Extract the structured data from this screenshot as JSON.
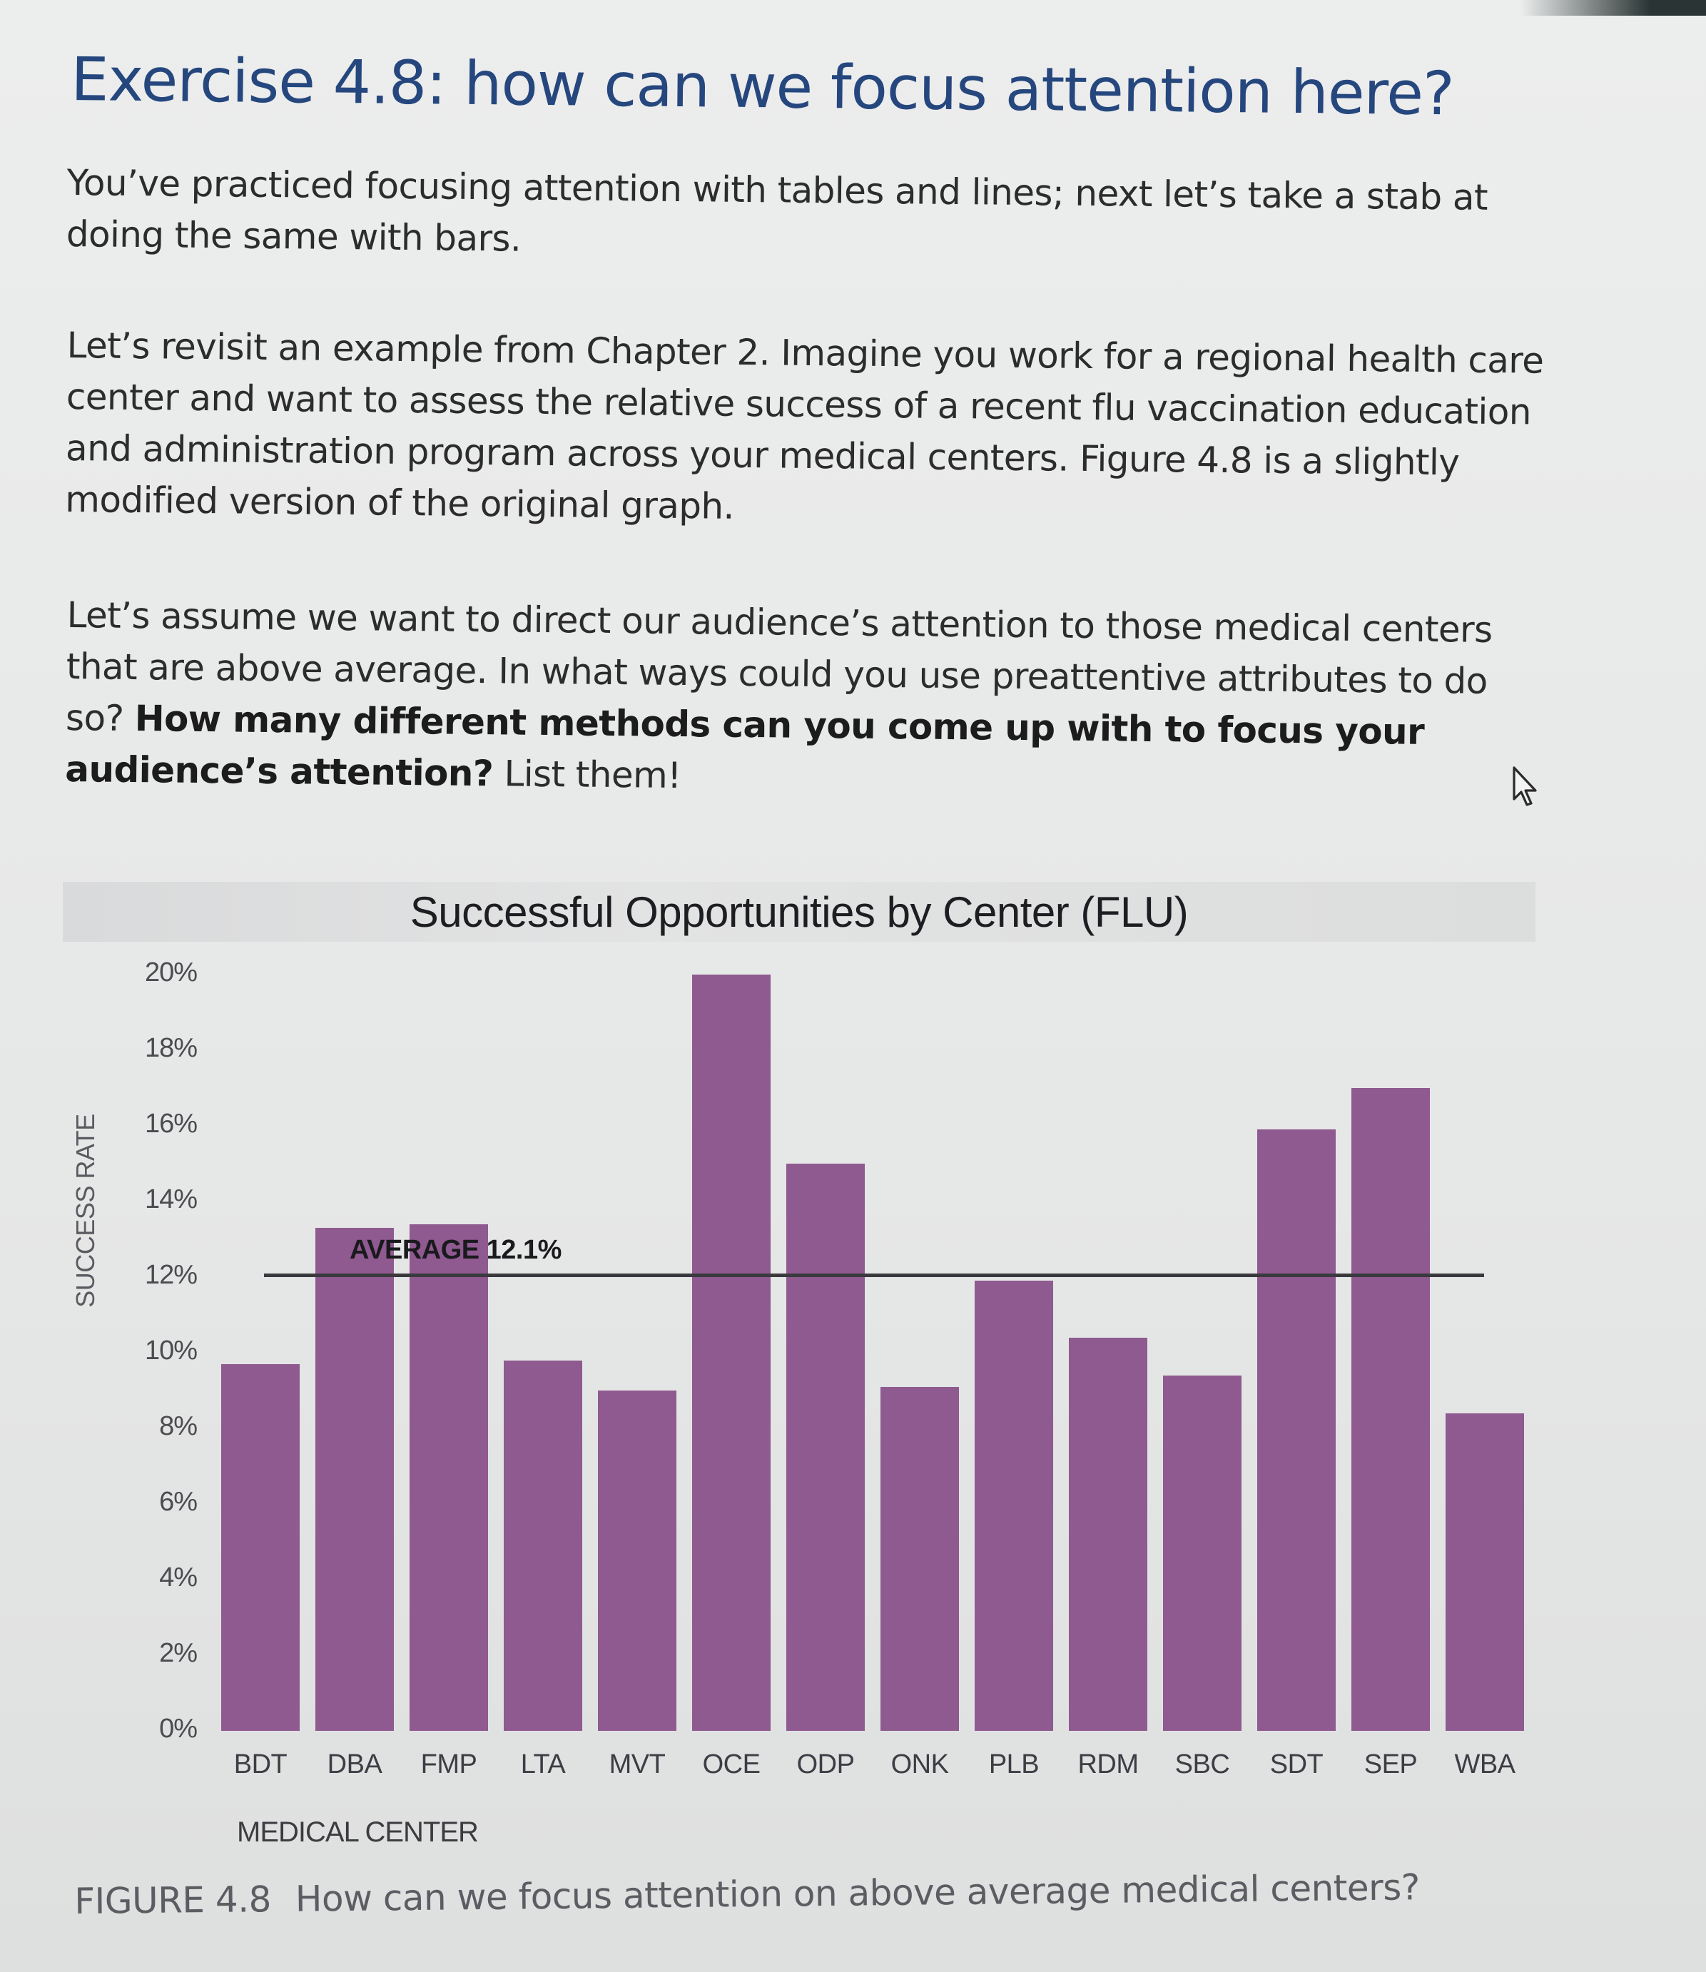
{
  "page": {
    "title": "Exercise 4.8: how can we focus attention here?",
    "paragraphs": {
      "intro": "You’ve practiced focusing attention with tables and lines; next let’s take a stab at doing the same with bars.",
      "context": "Let’s revisit an example from Chapter 2. Imagine you work for a regional health care center and want to assess the relative success of a recent flu vaccination education and administration program across your medical centers. Figure 4.8 is a slightly modified version of the original graph.",
      "task_plain": "Let’s assume we want to direct our audience’s attention to those medical centers that are above average. In what ways could you use preattentive attributes to do so?",
      "task_bold": "How many different methods can you come up with to focus your audience’s attention?",
      "task_end": "List them!"
    },
    "cursor_icon": "mouse-pointer-arrow",
    "caption": {
      "label": "FIGURE 4.8",
      "text": "How can we focus attention on above average medical centers?"
    }
  },
  "colors": {
    "title": "#25477e",
    "bar": "#8f5a90",
    "average_line": "#3a3a3e",
    "title_band": "#dcdddd"
  },
  "chart_data": {
    "type": "bar",
    "title": "Successful Opportunities by Center (FLU)",
    "xlabel": "MEDICAL CENTER",
    "ylabel": "SUCCESS RATE",
    "ylim": [
      0,
      20
    ],
    "y_ticks": [
      "0%",
      "2%",
      "4%",
      "6%",
      "8%",
      "10%",
      "12%",
      "14%",
      "16%",
      "18%",
      "20%"
    ],
    "grid": false,
    "legend": null,
    "categories": [
      "BDT",
      "DBA",
      "FMP",
      "LTA",
      "MVT",
      "OCE",
      "ODP",
      "ONK",
      "PLB",
      "RDM",
      "SBC",
      "SDT",
      "SEP",
      "WBA"
    ],
    "values": [
      9.7,
      13.3,
      13.4,
      9.8,
      9.0,
      20.0,
      15.0,
      9.1,
      11.9,
      10.4,
      9.4,
      15.9,
      17.0,
      8.4
    ],
    "unit": "%",
    "annotations": [
      {
        "type": "hline",
        "value": 12.1,
        "label": "AVERAGE 12.1%",
        "label_bold_part": "AVERAGE",
        "label_value_part": "12.1%"
      }
    ]
  }
}
